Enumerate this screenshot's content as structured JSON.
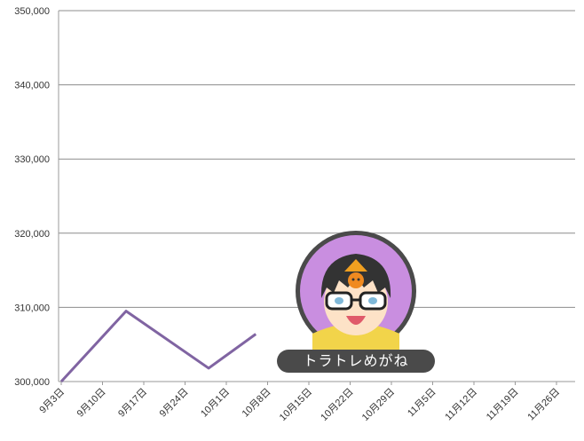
{
  "chart_data": {
    "type": "line",
    "x_ticks": [
      "9月3日",
      "9月10日",
      "9月17日",
      "9月24日",
      "10月1日",
      "10月8日",
      "10月15日",
      "10月22日",
      "10月29日",
      "11月5日",
      "11月12日",
      "11月19日",
      "11月26日"
    ],
    "series": [
      {
        "color": "#8064a2",
        "points": [
          {
            "x": "9月3日",
            "y": 300000
          },
          {
            "x": "9月14日",
            "y": 309500
          },
          {
            "x": "9月28日",
            "y": 301800
          },
          {
            "x": "10月6日",
            "y": 306400
          }
        ]
      }
    ],
    "y_ticks": [
      "300,000",
      "310,000",
      "320,000",
      "330,000",
      "340,000",
      "350,000"
    ],
    "ylim": [
      300000,
      350000
    ],
    "grid": true,
    "legend": "none"
  },
  "watermark": {
    "label": "トラトレめがね",
    "icon": "character-glasses-icon"
  }
}
